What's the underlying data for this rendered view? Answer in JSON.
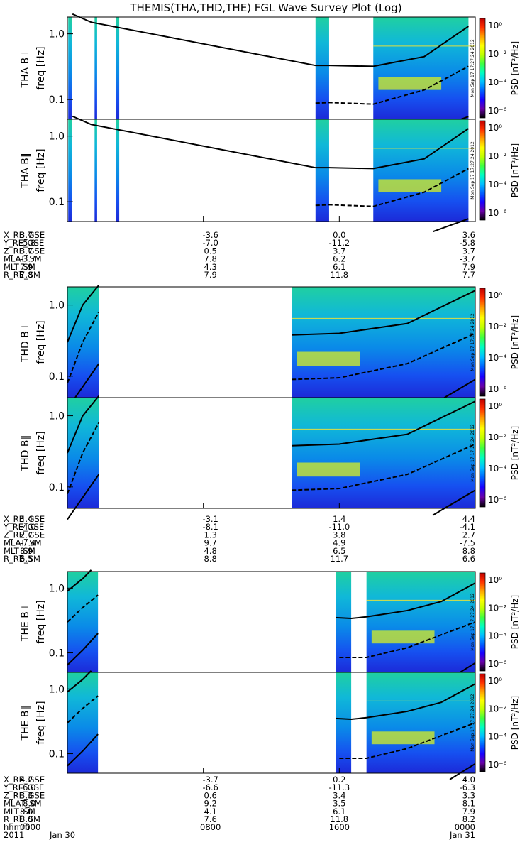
{
  "title": "THEMIS(THA,THD,THE) FGL Wave Survey Plot (Log)",
  "stamp": "Mon Sep 17 17:27:24 2012",
  "colorbar": {
    "label": "PSD [nT²/Hz]",
    "ticks": [
      "10⁰",
      "10⁻²",
      "10⁻⁴",
      "10⁻⁶"
    ],
    "colors": [
      "#000000",
      "#6a00a8",
      "#1800ff",
      "#0060ff",
      "#00c0ff",
      "#00ffc0",
      "#40ff40",
      "#c0ff00",
      "#ffff00",
      "#ffa000",
      "#ff3000",
      "#c00000"
    ]
  },
  "chart_data": {
    "type": "heatmap",
    "xaxis": {
      "row_labels": [
        "hhmm",
        "2011"
      ],
      "ticks": [
        {
          "time": 0,
          "hhmm": "0000",
          "date": "Jan 30"
        },
        {
          "time": 8,
          "hhmm": "0800",
          "date": ""
        },
        {
          "time": 16,
          "hhmm": "1600",
          "date": ""
        },
        {
          "time": 24,
          "hhmm": "0000",
          "date": "Jan 31"
        }
      ],
      "range_hours": [
        0,
        24
      ]
    },
    "yaxis": {
      "scale": "log",
      "range_hz": [
        0.05,
        1.8
      ],
      "ticks": [
        {
          "v": 1.0,
          "label": "1.0"
        },
        {
          "v": 0.1,
          "label": "0.1"
        }
      ]
    },
    "panels": [
      {
        "probe": "THA",
        "component": "B⊥",
        "ylabel": "freq [Hz]",
        "data_intervals": [
          [
            0.05,
            0.25
          ],
          [
            1.6,
            1.75
          ],
          [
            2.85,
            3.05
          ],
          [
            14.6,
            15.4
          ],
          [
            18.0,
            23.6
          ]
        ],
        "lines": {
          "line1": [
            [
              0.3,
              2.0
            ],
            [
              1.4,
              1.5
            ],
            [
              14.6,
              0.33
            ],
            [
              15.4,
              0.33
            ],
            [
              18.0,
              0.32
            ],
            [
              21.0,
              0.45
            ],
            [
              23.6,
              1.3
            ]
          ],
          "line2": [
            [
              14.6,
              0.088
            ],
            [
              15.4,
              0.09
            ],
            [
              18.0,
              0.085
            ],
            [
              21.0,
              0.14
            ],
            [
              23.6,
              0.32
            ]
          ],
          "line3": [
            [
              21.5,
              0.035
            ],
            [
              23.6,
              0.055
            ]
          ]
        }
      },
      {
        "probe": "THA",
        "component": "B∥",
        "ylabel": "freq [Hz]",
        "data_intervals": [
          [
            0.05,
            0.25
          ],
          [
            1.6,
            1.75
          ],
          [
            2.85,
            3.05
          ],
          [
            14.6,
            15.4
          ],
          [
            18.0,
            23.6
          ]
        ],
        "lines": {
          "line1": [
            [
              0.3,
              2.0
            ],
            [
              1.4,
              1.5
            ],
            [
              14.6,
              0.33
            ],
            [
              15.4,
              0.33
            ],
            [
              18.0,
              0.32
            ],
            [
              21.0,
              0.45
            ],
            [
              23.6,
              1.3
            ]
          ],
          "line2": [
            [
              14.6,
              0.088
            ],
            [
              15.4,
              0.09
            ],
            [
              18.0,
              0.085
            ],
            [
              21.0,
              0.14
            ],
            [
              23.6,
              0.32
            ]
          ],
          "line3": [
            [
              21.5,
              0.035
            ],
            [
              23.6,
              0.055
            ]
          ]
        }
      },
      {
        "probe": "THD",
        "component": "B⊥",
        "ylabel": "freq [Hz]",
        "data_intervals": [
          [
            0.0,
            1.85
          ],
          [
            13.2,
            24.0
          ]
        ],
        "lines": {
          "line1": [
            [
              0.0,
              0.3
            ],
            [
              0.9,
              1.0
            ],
            [
              1.85,
              1.9
            ]
          ],
          "line2": [
            [
              0.0,
              0.08
            ],
            [
              0.9,
              0.3
            ],
            [
              1.85,
              0.8
            ]
          ],
          "line3": [
            [
              0.0,
              0.035
            ],
            [
              1.85,
              0.15
            ]
          ],
          "line4": [
            [
              13.2,
              0.38
            ],
            [
              16.0,
              0.4
            ],
            [
              20.0,
              0.55
            ],
            [
              24.0,
              1.6
            ]
          ],
          "line5": [
            [
              13.2,
              0.09
            ],
            [
              16.0,
              0.095
            ],
            [
              20.0,
              0.15
            ],
            [
              24.0,
              0.4
            ]
          ],
          "line6": [
            [
              21.5,
              0.04
            ],
            [
              24.0,
              0.09
            ]
          ]
        }
      },
      {
        "probe": "THD",
        "component": "B∥",
        "ylabel": "freq [Hz]",
        "data_intervals": [
          [
            0.0,
            1.85
          ],
          [
            13.2,
            24.0
          ]
        ],
        "lines": {
          "line1": [
            [
              0.0,
              0.3
            ],
            [
              0.9,
              1.0
            ],
            [
              1.85,
              1.9
            ]
          ],
          "line2": [
            [
              0.0,
              0.08
            ],
            [
              0.9,
              0.3
            ],
            [
              1.85,
              0.8
            ]
          ],
          "line3": [
            [
              0.0,
              0.035
            ],
            [
              1.85,
              0.15
            ]
          ],
          "line4": [
            [
              13.2,
              0.38
            ],
            [
              16.0,
              0.4
            ],
            [
              20.0,
              0.55
            ],
            [
              24.0,
              1.6
            ]
          ],
          "line5": [
            [
              13.2,
              0.09
            ],
            [
              16.0,
              0.095
            ],
            [
              20.0,
              0.15
            ],
            [
              24.0,
              0.4
            ]
          ],
          "line6": [
            [
              21.5,
              0.04
            ],
            [
              24.0,
              0.09
            ]
          ]
        }
      },
      {
        "probe": "THE",
        "component": "B⊥",
        "ylabel": "freq [Hz]",
        "data_intervals": [
          [
            0.0,
            1.8
          ],
          [
            15.8,
            16.7
          ],
          [
            17.6,
            24.0
          ]
        ],
        "lines": {
          "line1": [
            [
              0.0,
              0.9
            ],
            [
              0.9,
              1.4
            ],
            [
              1.4,
              1.9
            ]
          ],
          "line2": [
            [
              0.0,
              0.3
            ],
            [
              0.9,
              0.5
            ],
            [
              1.8,
              0.78
            ]
          ],
          "line3": [
            [
              0.0,
              0.065
            ],
            [
              0.9,
              0.11
            ],
            [
              1.8,
              0.2
            ]
          ],
          "line4": [
            [
              15.8,
              0.35
            ],
            [
              16.7,
              0.34
            ],
            [
              17.6,
              0.36
            ],
            [
              20.0,
              0.45
            ],
            [
              22.0,
              0.62
            ],
            [
              24.0,
              1.2
            ]
          ],
          "line5": [
            [
              16.0,
              0.085
            ],
            [
              17.6,
              0.085
            ],
            [
              20.0,
              0.12
            ],
            [
              24.0,
              0.3
            ]
          ],
          "line6": [
            [
              22.5,
              0.04
            ],
            [
              24.0,
              0.07
            ]
          ]
        }
      },
      {
        "probe": "THE",
        "component": "B∥",
        "ylabel": "freq [Hz]",
        "data_intervals": [
          [
            0.0,
            1.8
          ],
          [
            15.8,
            16.7
          ],
          [
            17.6,
            24.0
          ]
        ],
        "lines": {
          "line1": [
            [
              0.0,
              0.9
            ],
            [
              0.9,
              1.4
            ],
            [
              1.4,
              1.9
            ]
          ],
          "line2": [
            [
              0.0,
              0.3
            ],
            [
              0.9,
              0.5
            ],
            [
              1.8,
              0.78
            ]
          ],
          "line3": [
            [
              0.0,
              0.065
            ],
            [
              0.9,
              0.11
            ],
            [
              1.8,
              0.2
            ]
          ],
          "line4": [
            [
              15.8,
              0.35
            ],
            [
              16.7,
              0.34
            ],
            [
              17.6,
              0.36
            ],
            [
              20.0,
              0.45
            ],
            [
              22.0,
              0.62
            ],
            [
              24.0,
              1.2
            ]
          ],
          "line5": [
            [
              16.0,
              0.085
            ],
            [
              17.6,
              0.085
            ],
            [
              20.0,
              0.12
            ],
            [
              24.0,
              0.3
            ]
          ],
          "line6": [
            [
              22.5,
              0.04
            ],
            [
              24.0,
              0.07
            ]
          ]
        }
      }
    ],
    "ephemeris": [
      {
        "probe": "THA",
        "labels": [
          "X_RE_GSE",
          "Y_RE_GSE",
          "Z_RE_GSE",
          "MLAT_SM",
          "MLT_SM",
          "R_RE_SM"
        ],
        "columns": [
          [
            "3.7",
            "-5.8",
            "3.7",
            "-3.7",
            "7.9",
            "7.8"
          ],
          [
            "-3.6",
            "-7.0",
            "0.5",
            "7.8",
            "4.3",
            "7.9"
          ],
          [
            "0.0",
            "-11.2",
            "3.7",
            "6.2",
            "6.1",
            "11.8"
          ],
          [
            "3.6",
            "-5.8",
            "3.7",
            "-3.7",
            "7.9",
            "7.7"
          ]
        ]
      },
      {
        "probe": "THD",
        "labels": [
          "X_RE_GSE",
          "Y_RE_GSE",
          "Z_RE_GSE",
          "MLAT_SM",
          "MLT_SM",
          "R_RE_SM"
        ],
        "columns": [
          [
            "4.4",
            "-4.0",
            "2.7",
            "-7.4",
            "8.9",
            "6.5"
          ],
          [
            "-3.1",
            "-8.1",
            "1.3",
            "9.7",
            "4.8",
            "8.8"
          ],
          [
            "1.4",
            "-11.0",
            "3.8",
            "4.9",
            "6.5",
            "11.7"
          ],
          [
            "4.4",
            "-4.1",
            "2.7",
            "-7.5",
            "8.8",
            "6.6"
          ]
        ]
      },
      {
        "probe": "THE",
        "labels": [
          "X_RE_GSE",
          "Y_RE_GSE",
          "Z_RE_GSE",
          "MLAT_SM",
          "MLT_SM",
          "R_RE_SM"
        ],
        "columns": [
          [
            "4.2",
            "-6.0",
            "3.3",
            "-8.0",
            "8.0",
            "8.0"
          ],
          [
            "-3.7",
            "-6.6",
            "0.6",
            "9.2",
            "4.1",
            "7.6"
          ],
          [
            "0.2",
            "-11.3",
            "3.4",
            "3.5",
            "6.1",
            "11.8"
          ],
          [
            "4.0",
            "-6.3",
            "3.3",
            "-8.1",
            "7.9",
            "8.2"
          ]
        ]
      }
    ]
  }
}
